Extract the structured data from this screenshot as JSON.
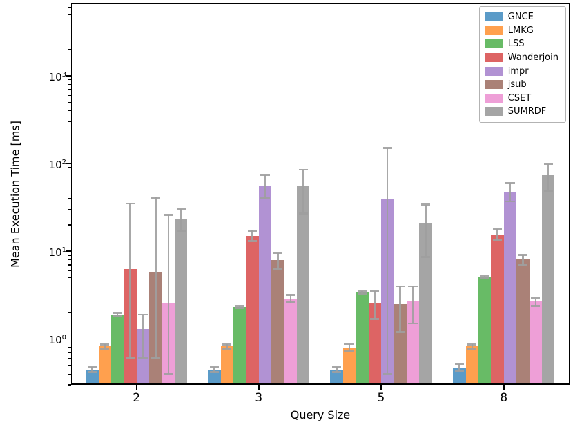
{
  "chart_data": {
    "type": "bar",
    "title": "",
    "xlabel": "Query Size",
    "ylabel": "Mean Execution Time [ms]",
    "categories": [
      "2",
      "3",
      "5",
      "8"
    ],
    "log_y": true,
    "ylim": [
      0.3,
      6800
    ],
    "ytick_exponents": [
      0,
      1,
      2,
      3
    ],
    "grid": false,
    "legend_position": "upper right",
    "error_bar_color": "rgba(158,158,158,0.9)",
    "group_center_fracs": [
      0.131,
      0.376,
      0.621,
      0.867
    ],
    "series": [
      {
        "name": "GNCE",
        "color": "#5b9bc8",
        "values": [
          0.45,
          0.45,
          0.45,
          0.47
        ],
        "err_lo": [
          0.42,
          0.42,
          0.42,
          0.43
        ],
        "err_hi": [
          0.48,
          0.48,
          0.48,
          0.52
        ]
      },
      {
        "name": "LMKG",
        "color": "#ffa04e",
        "values": [
          0.82,
          0.82,
          0.8,
          0.82
        ],
        "err_lo": [
          0.78,
          0.78,
          0.73,
          0.78
        ],
        "err_hi": [
          0.87,
          0.87,
          0.88,
          0.87
        ]
      },
      {
        "name": "LSS",
        "color": "#68bb66",
        "values": [
          1.9,
          2.3,
          3.4,
          5.1
        ],
        "err_lo": [
          1.85,
          2.25,
          3.3,
          5.0
        ],
        "err_hi": [
          1.97,
          2.38,
          3.5,
          5.25
        ]
      },
      {
        "name": "Wanderjoin",
        "color": "#dd6464",
        "values": [
          6.3,
          15.0,
          2.6,
          15.6
        ],
        "err_lo": [
          0.6,
          13.0,
          1.7,
          13.5
        ],
        "err_hi": [
          35,
          17.2,
          3.5,
          17.8
        ]
      },
      {
        "name": "impr",
        "color": "#b192d3",
        "values": [
          1.3,
          56,
          40,
          47
        ],
        "err_lo": [
          0.61,
          40,
          0.4,
          37
        ],
        "err_hi": [
          1.9,
          74,
          150,
          60
        ]
      },
      {
        "name": "jsub",
        "color": "#aa8177",
        "values": [
          5.8,
          7.9,
          2.5,
          8.3
        ],
        "err_lo": [
          0.6,
          6.3,
          1.2,
          6.9
        ],
        "err_hi": [
          41,
          9.6,
          4.0,
          9.1
        ]
      },
      {
        "name": "CSET",
        "color": "#ee9fd7",
        "values": [
          2.6,
          2.9,
          2.7,
          2.7
        ],
        "err_lo": [
          0.4,
          2.6,
          1.5,
          2.4
        ],
        "err_hi": [
          26,
          3.2,
          4.0,
          2.9
        ]
      },
      {
        "name": "SUMRDF",
        "color": "#a5a5a5",
        "values": [
          23.5,
          56,
          21,
          74
        ],
        "err_lo": [
          17,
          27,
          8.6,
          49
        ],
        "err_hi": [
          30.5,
          85,
          34,
          99
        ]
      }
    ]
  }
}
